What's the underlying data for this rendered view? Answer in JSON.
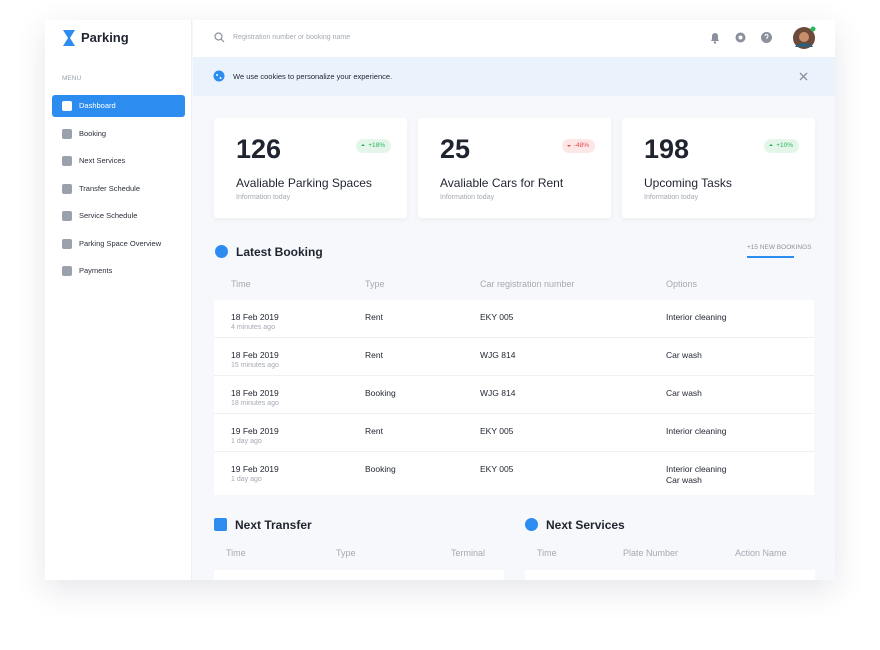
{
  "sidebar": {
    "brand": "Parking",
    "menu_label": "MENU",
    "items": [
      "Dashboard",
      "Booking",
      "Next Services",
      "Transfer Schedule",
      "Service Schedule",
      "Parking Space Overview",
      "Payments"
    ]
  },
  "header": {
    "search_placeholder": "Registration number or booking name"
  },
  "cookie_banner": {
    "text": "We use cookies to personalize your experience."
  },
  "stats": [
    {
      "value": "126",
      "change": "+18%",
      "label": "Avaliable Parking Spaces",
      "sub": "Information today"
    },
    {
      "value": "25",
      "change": "-48%",
      "label": "Avaliable Cars for Rent",
      "sub": "Information today"
    },
    {
      "value": "198",
      "change": "+10%",
      "label": "Upcoming Tasks",
      "sub": "Information today"
    }
  ],
  "latest_booking": {
    "title": "Latest Booking",
    "badge": "+15 NEW BOOKINGS",
    "columns": [
      "Time",
      "Type",
      "Car registration number",
      "Options"
    ],
    "rows": [
      {
        "date": "18 Feb 2019",
        "ago": "4 minutes ago",
        "type": "Rent",
        "registration": "EKY 005",
        "options": [
          "Interior cleaning"
        ]
      },
      {
        "date": "18 Feb 2019",
        "ago": "15 minutes ago",
        "type": "Rent",
        "registration": "WJG 814",
        "options": [
          "Car wash"
        ]
      },
      {
        "date": "18 Feb 2019",
        "ago": "18 minutes ago",
        "type": "Booking",
        "registration": "WJG 814",
        "options": [
          "Car wash"
        ]
      },
      {
        "date": "19 Feb 2019",
        "ago": "1 day ago",
        "type": "Rent",
        "registration": "EKY 005",
        "options": [
          "Interior cleaning"
        ]
      },
      {
        "date": "19 Feb 2019",
        "ago": "1 day ago",
        "type": "Booking",
        "registration": "EKY 005",
        "options": [
          "Interior cleaning",
          "Car wash"
        ]
      }
    ]
  },
  "next_transfer": {
    "title": "Next Transfer",
    "columns": [
      "Time",
      "Type",
      "Terminal"
    ]
  },
  "next_services": {
    "title": "Next Services",
    "columns": [
      "Time",
      "Plate Number",
      "Action Name"
    ]
  }
}
